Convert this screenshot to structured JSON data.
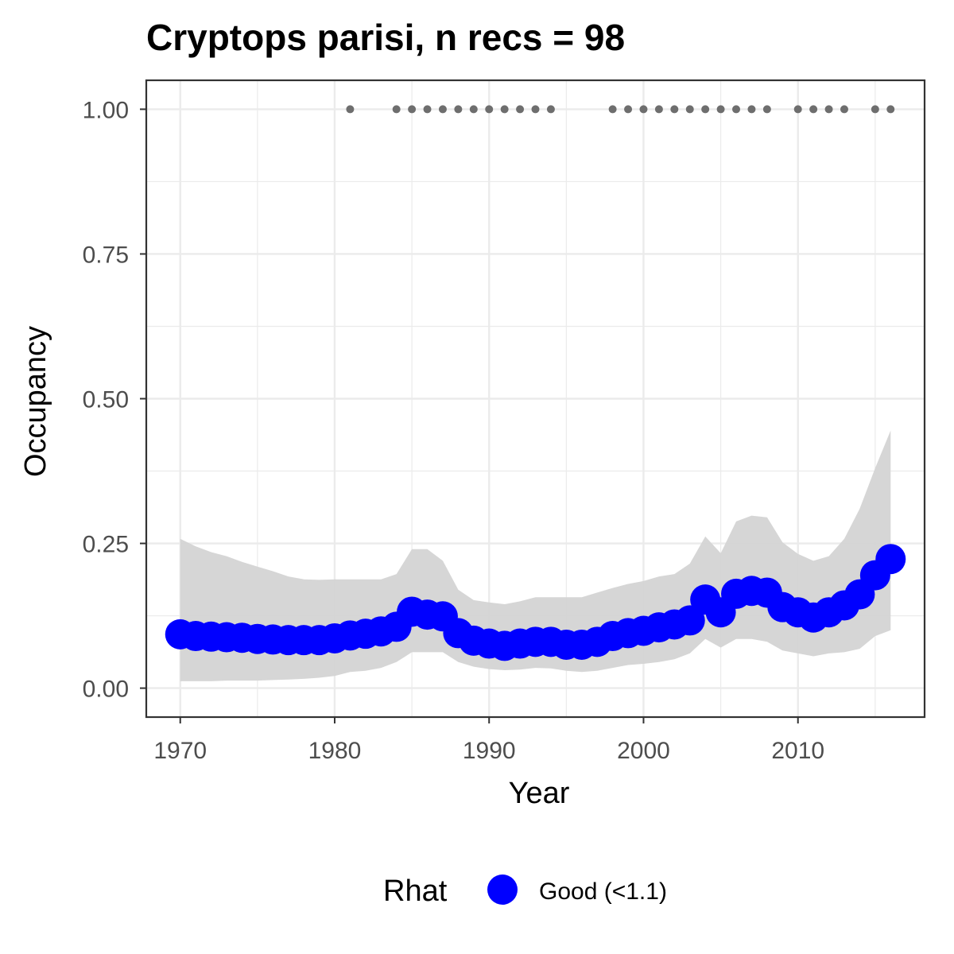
{
  "chart_data": {
    "type": "line",
    "title": "Cryptops parisi, n recs = 98",
    "xlabel": "Year",
    "ylabel": "Occupancy",
    "xlim": [
      1967.8,
      2018.2
    ],
    "ylim": [
      -0.05,
      1.05
    ],
    "x_ticks": [
      1970,
      1980,
      1990,
      2000,
      2010
    ],
    "y_ticks": [
      0.0,
      0.25,
      0.5,
      0.75,
      1.0
    ],
    "x_tick_labels": [
      "1970",
      "1980",
      "1990",
      "2000",
      "2010"
    ],
    "y_tick_labels": [
      "0.00",
      "0.25",
      "0.50",
      "0.75",
      "1.00"
    ],
    "grid": true,
    "legend": {
      "position": "bottom",
      "title": "Rhat",
      "entries": [
        {
          "label": "Good (<1.1)",
          "color": "#0000ff"
        }
      ]
    },
    "colors": {
      "series": "#0000ff",
      "ribbon": "#d4d4d4",
      "records": "#6e6e6e",
      "grid": "#ebebeb",
      "panel_border": "#333333"
    },
    "series": [
      {
        "name": "Good (<1.1)",
        "x": [
          1970,
          1971,
          1972,
          1973,
          1974,
          1975,
          1976,
          1977,
          1978,
          1979,
          1980,
          1981,
          1982,
          1983,
          1984,
          1985,
          1986,
          1987,
          1988,
          1989,
          1990,
          1991,
          1992,
          1993,
          1994,
          1995,
          1996,
          1997,
          1998,
          1999,
          2000,
          2001,
          2002,
          2003,
          2004,
          2005,
          2006,
          2007,
          2008,
          2009,
          2010,
          2011,
          2012,
          2013,
          2014,
          2015,
          2016
        ],
        "y": [
          0.093,
          0.09,
          0.089,
          0.088,
          0.087,
          0.085,
          0.084,
          0.083,
          0.083,
          0.083,
          0.086,
          0.091,
          0.094,
          0.098,
          0.106,
          0.132,
          0.127,
          0.124,
          0.095,
          0.082,
          0.077,
          0.073,
          0.077,
          0.08,
          0.08,
          0.075,
          0.075,
          0.08,
          0.09,
          0.095,
          0.099,
          0.105,
          0.11,
          0.117,
          0.153,
          0.131,
          0.163,
          0.168,
          0.165,
          0.14,
          0.131,
          0.122,
          0.131,
          0.143,
          0.162,
          0.195,
          0.223
        ],
        "lower": [
          0.012,
          0.012,
          0.012,
          0.013,
          0.013,
          0.013,
          0.014,
          0.015,
          0.016,
          0.018,
          0.021,
          0.028,
          0.03,
          0.035,
          0.045,
          0.062,
          0.062,
          0.062,
          0.045,
          0.037,
          0.033,
          0.031,
          0.032,
          0.035,
          0.034,
          0.03,
          0.028,
          0.03,
          0.035,
          0.04,
          0.042,
          0.045,
          0.05,
          0.06,
          0.085,
          0.07,
          0.085,
          0.085,
          0.08,
          0.065,
          0.06,
          0.055,
          0.06,
          0.062,
          0.068,
          0.09,
          0.1
        ],
        "upper": [
          0.258,
          0.245,
          0.235,
          0.228,
          0.218,
          0.21,
          0.202,
          0.193,
          0.188,
          0.187,
          0.188,
          0.188,
          0.188,
          0.188,
          0.197,
          0.24,
          0.24,
          0.22,
          0.17,
          0.152,
          0.148,
          0.145,
          0.15,
          0.157,
          0.157,
          0.157,
          0.157,
          0.165,
          0.173,
          0.18,
          0.185,
          0.193,
          0.197,
          0.215,
          0.262,
          0.233,
          0.288,
          0.298,
          0.295,
          0.252,
          0.232,
          0.22,
          0.228,
          0.258,
          0.31,
          0.38,
          0.445
        ]
      }
    ],
    "records": {
      "y": 1.0,
      "x": [
        1981,
        1984,
        1985,
        1986,
        1987,
        1988,
        1989,
        1990,
        1991,
        1992,
        1993,
        1994,
        1998,
        1999,
        2000,
        2001,
        2002,
        2003,
        2004,
        2005,
        2006,
        2007,
        2008,
        2010,
        2011,
        2012,
        2013,
        2015,
        2016
      ]
    }
  }
}
